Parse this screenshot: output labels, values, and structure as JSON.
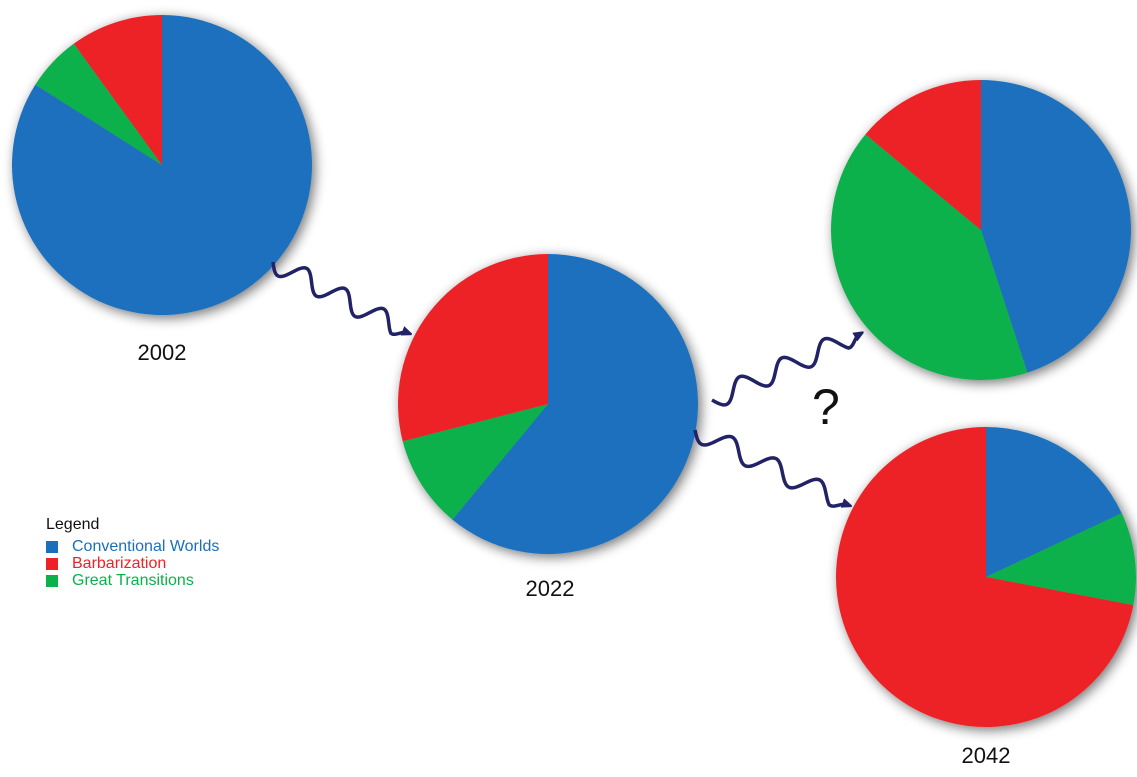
{
  "legend": {
    "title": "Legend",
    "items": [
      {
        "label": "Conventional Worlds",
        "color": "#1a6fbd"
      },
      {
        "label": "Barbarization",
        "color": "#ec2227"
      },
      {
        "label": "Great Transitions",
        "color": "#0db14b"
      }
    ]
  },
  "annotation": "?",
  "arrow_color": "#222266",
  "chart_data": [
    {
      "type": "pie",
      "label": "2002",
      "categories": [
        "Conventional Worlds",
        "Great Transitions",
        "Barbarization"
      ],
      "values": [
        84,
        6,
        10
      ],
      "colors": [
        "#1a6fbd",
        "#0db14b",
        "#ec2227"
      ]
    },
    {
      "type": "pie",
      "label": "2022",
      "categories": [
        "Conventional Worlds",
        "Great Transitions",
        "Barbarization"
      ],
      "values": [
        61,
        10,
        29
      ],
      "colors": [
        "#1a6fbd",
        "#0db14b",
        "#ec2227"
      ]
    },
    {
      "type": "pie",
      "label": "",
      "categories": [
        "Conventional Worlds",
        "Great Transitions",
        "Barbarization"
      ],
      "values": [
        45,
        41,
        14
      ],
      "colors": [
        "#1a6fbd",
        "#0db14b",
        "#ec2227"
      ]
    },
    {
      "type": "pie",
      "label": "2042",
      "categories": [
        "Conventional Worlds",
        "Great Transitions",
        "Barbarization"
      ],
      "values": [
        18,
        10,
        72
      ],
      "colors": [
        "#1a6fbd",
        "#0db14b",
        "#ec2227"
      ]
    }
  ]
}
